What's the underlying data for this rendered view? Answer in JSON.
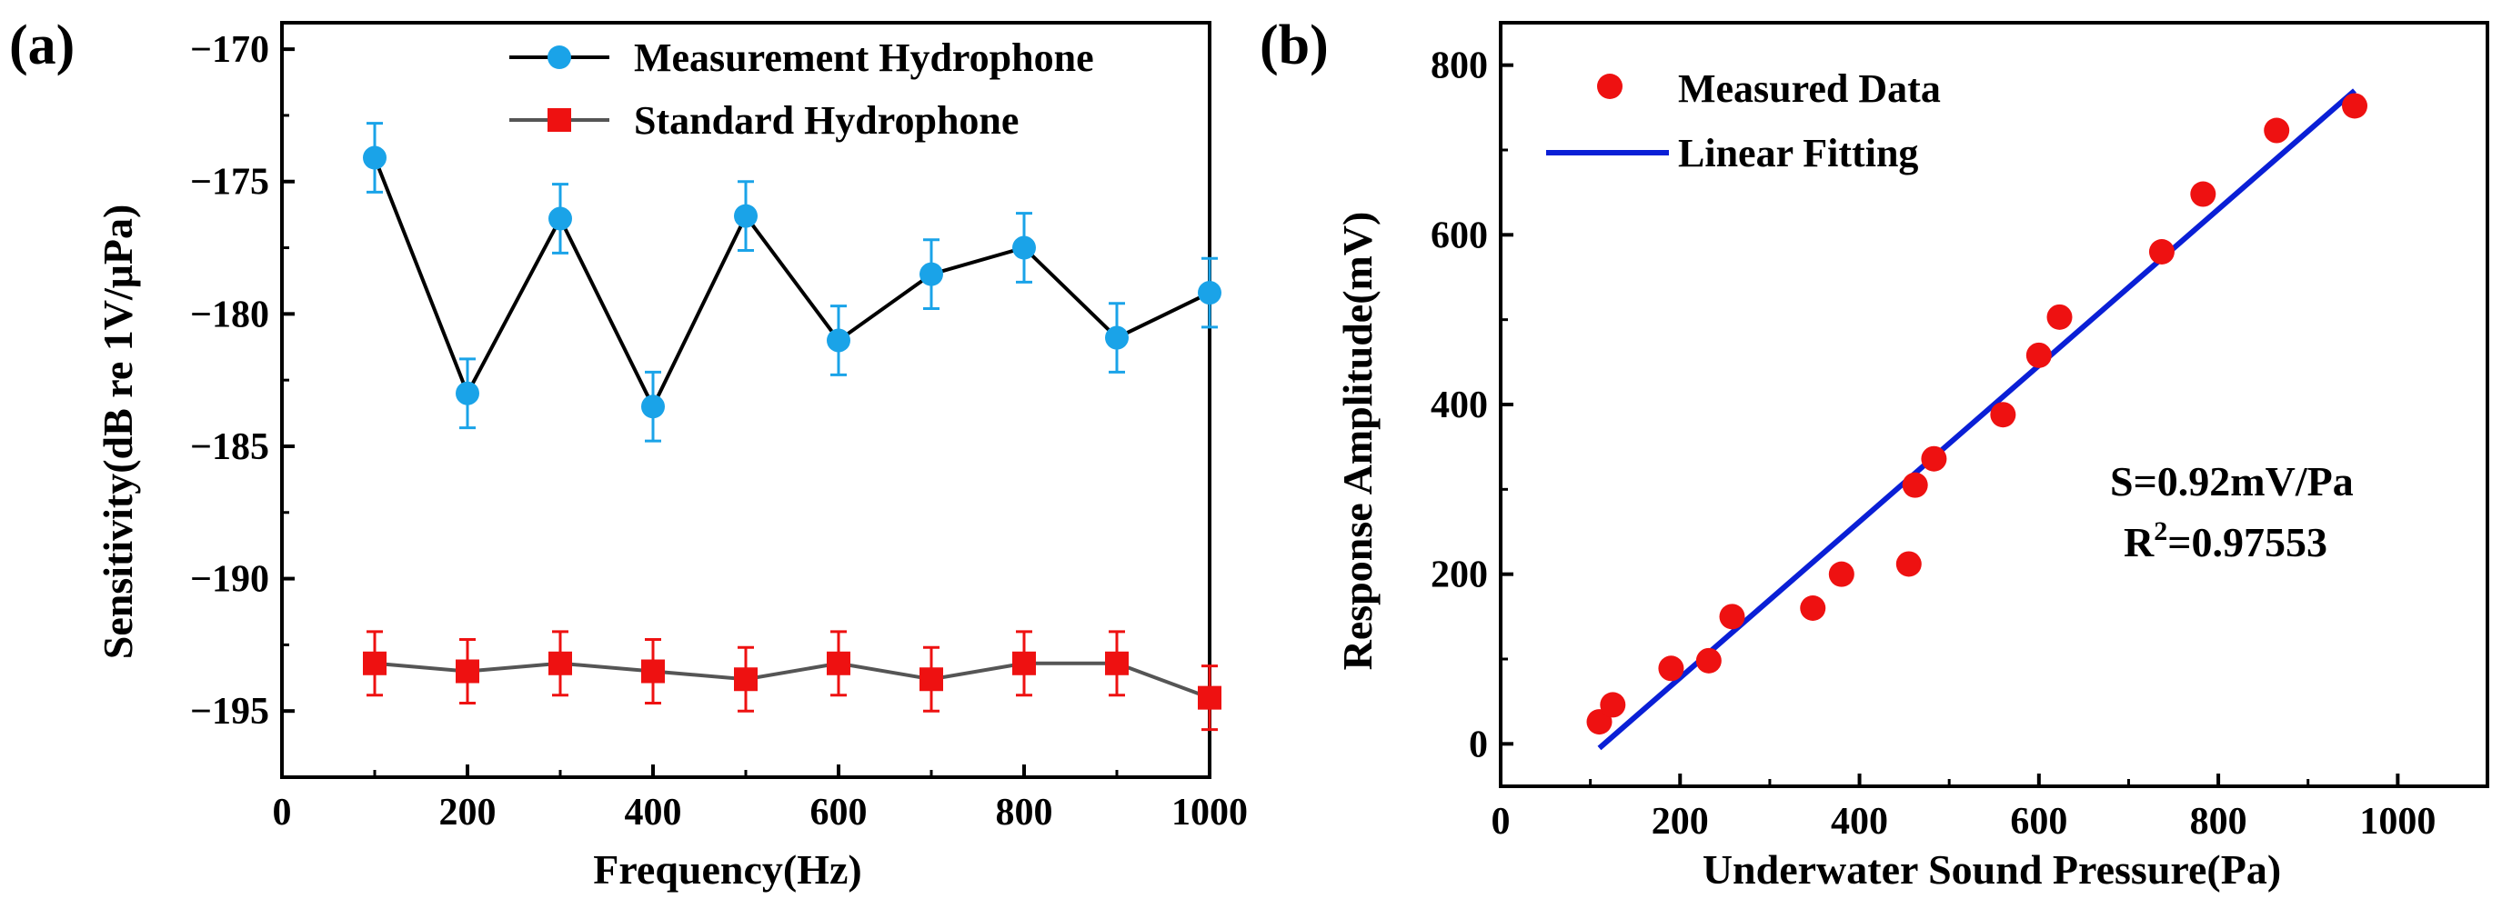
{
  "chart_data": [
    {
      "panel_label": "(a)",
      "type": "line",
      "title": "",
      "xlabel": "Frequency(Hz)",
      "ylabel": "Sensitivity(dB re 1V/μPa)",
      "xlim": [
        0,
        1000
      ],
      "ylim": [
        -197.5,
        -169
      ],
      "xticks": [
        0,
        200,
        400,
        600,
        800,
        1000
      ],
      "yticks": [
        -170,
        -175,
        -180,
        -185,
        -190,
        -195
      ],
      "xtick_labels": [
        "0",
        "200",
        "400",
        "600",
        "800",
        "1000"
      ],
      "ytick_labels": [
        "−170",
        "−175",
        "−180",
        "−185",
        "−190",
        "−195"
      ],
      "grid": false,
      "legend_position": "top-right",
      "x": [
        100,
        200,
        300,
        400,
        500,
        600,
        700,
        800,
        900,
        1000
      ],
      "series": [
        {
          "name": "Measurement Hydrophone",
          "marker": "circle",
          "color": "#1aa3e8",
          "line_color": "#000000",
          "values": [
            -174.1,
            -183.0,
            -176.4,
            -183.5,
            -176.3,
            -181.0,
            -178.5,
            -177.5,
            -180.9,
            -179.2
          ],
          "error": [
            1.3,
            1.3,
            1.3,
            1.3,
            1.3,
            1.3,
            1.3,
            1.3,
            1.3,
            1.3
          ]
        },
        {
          "name": "Standard Hydrophone",
          "marker": "square",
          "color": "#ee1111",
          "line_color": "#555555",
          "values": [
            -193.2,
            -193.5,
            -193.2,
            -193.5,
            -193.8,
            -193.2,
            -193.8,
            -193.2,
            -193.2,
            -194.5
          ],
          "error": [
            1.2,
            1.2,
            1.2,
            1.2,
            1.2,
            1.2,
            1.2,
            1.2,
            1.2,
            1.2
          ]
        }
      ]
    },
    {
      "panel_label": "(b)",
      "type": "scatter",
      "title": "",
      "xlabel": "Underwater Sound Pressure(Pa)",
      "ylabel": "Response Amplitude(mV)",
      "xlim": [
        0,
        1100
      ],
      "ylim": [
        -50,
        850
      ],
      "xticks": [
        0,
        200,
        400,
        600,
        800,
        1000
      ],
      "yticks": [
        0,
        200,
        400,
        600,
        800
      ],
      "xtick_labels": [
        "0",
        "200",
        "400",
        "600",
        "800",
        "1000"
      ],
      "ytick_labels": [
        "0",
        "200",
        "400",
        "600",
        "800"
      ],
      "grid": false,
      "legend_position": "top-left",
      "series": [
        {
          "name": "Measured Data",
          "marker": "circle",
          "color": "#ee1111",
          "x": [
            110,
            125,
            190,
            232,
            258,
            348,
            380,
            455,
            462,
            483,
            560,
            600,
            623,
            737,
            783,
            865,
            952
          ],
          "y": [
            26,
            46,
            89,
            98,
            150,
            160,
            200,
            212,
            305,
            336,
            388,
            458,
            503,
            580,
            648,
            723,
            752
          ]
        },
        {
          "name": "Linear Fitting",
          "type": "line",
          "color": "#0a1fd6",
          "x": [
            110,
            952
          ],
          "y": [
            -5,
            770
          ]
        }
      ],
      "annotations": [
        {
          "text": "S=0.92mV/Pa"
        },
        {
          "prefix": "R",
          "superscript": "2",
          "suffix": "=0.97553"
        }
      ]
    }
  ]
}
